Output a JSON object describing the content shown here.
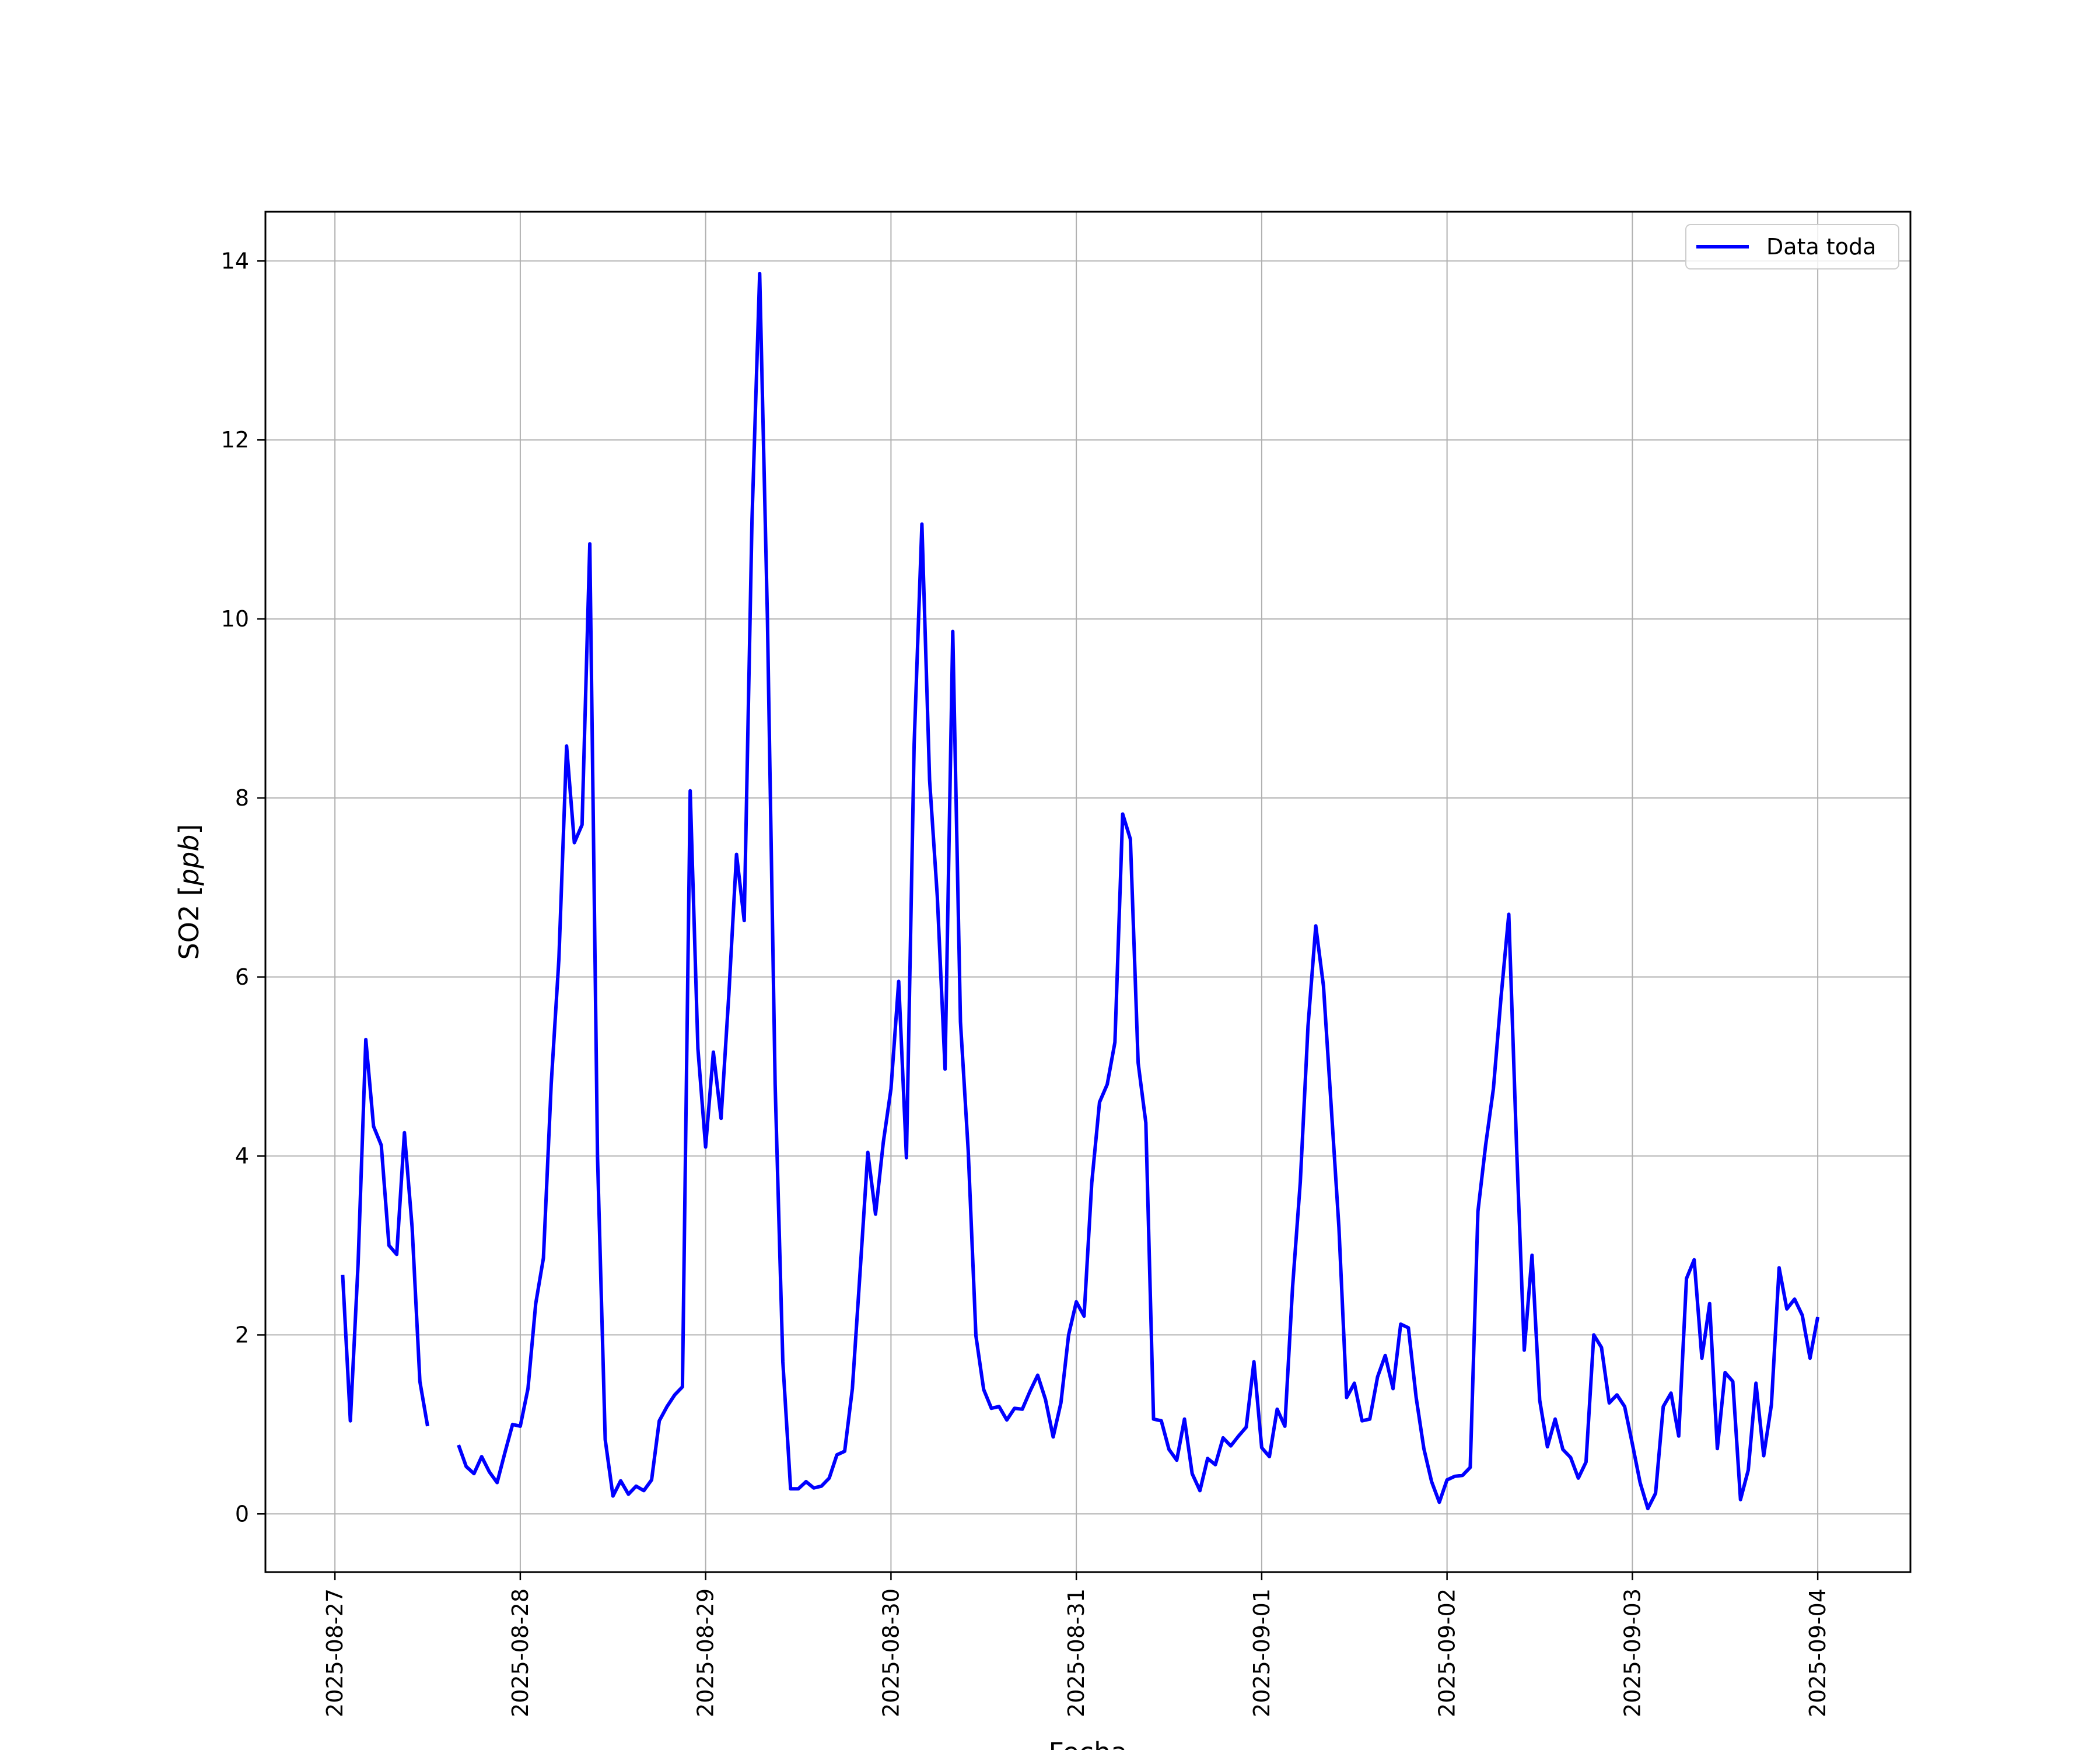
{
  "chart_data": {
    "type": "line",
    "xlabel": "Fecha",
    "ylabel_main": "SO2 [",
    "ylabel_unit": "ppb",
    "ylabel_close": "]",
    "xlim": [
      "2025-08-26T15:00",
      "2025-09-04T12:00"
    ],
    "ylim": [
      -0.65,
      14.55
    ],
    "x_ticks": [
      "2025-08-27",
      "2025-08-28",
      "2025-08-29",
      "2025-08-30",
      "2025-08-31",
      "2025-09-01",
      "2025-09-02",
      "2025-09-03",
      "2025-09-04"
    ],
    "y_ticks": [
      0,
      2,
      4,
      6,
      8,
      10,
      12,
      14
    ],
    "y_tick_labels": [
      "0",
      "2",
      "4",
      "6",
      "8",
      "10",
      "12",
      "14"
    ],
    "grid": true,
    "legend_position": "top-right",
    "series": [
      {
        "name": "Data toda",
        "color": "#0000ff",
        "start": "2025-08-27T01:00",
        "step_hours": 1,
        "values": [
          2.67,
          1.04,
          2.8,
          5.3,
          4.33,
          4.12,
          3.0,
          2.9,
          4.26,
          3.2,
          1.48,
          0.98,
          null,
          null,
          null,
          0.77,
          0.53,
          0.45,
          0.64,
          0.47,
          0.35,
          0.68,
          1.0,
          0.98,
          1.4,
          2.35,
          2.86,
          4.8,
          6.2,
          8.58,
          7.5,
          7.7,
          10.84,
          4.0,
          0.83,
          0.2,
          0.37,
          0.22,
          0.31,
          0.26,
          0.38,
          1.04,
          1.2,
          1.33,
          1.42,
          8.08,
          5.2,
          4.1,
          5.16,
          4.42,
          5.8,
          7.37,
          6.63,
          11.1,
          13.86,
          10.0,
          4.8,
          1.7,
          0.28,
          0.28,
          0.36,
          0.29,
          0.31,
          0.4,
          0.66,
          0.7,
          1.4,
          2.7,
          4.04,
          3.35,
          4.15,
          4.75,
          5.95,
          3.98,
          8.6,
          11.06,
          8.2,
          6.9,
          4.97,
          9.86,
          5.5,
          4.06,
          1.99,
          1.39,
          1.18,
          1.2,
          1.05,
          1.18,
          1.17,
          1.37,
          1.55,
          1.28,
          0.86,
          1.24,
          2.0,
          2.37,
          2.21,
          3.7,
          4.6,
          4.8,
          5.27,
          7.82,
          7.54,
          5.04,
          4.37,
          1.06,
          1.04,
          0.72,
          0.6,
          1.06,
          0.45,
          0.26,
          0.62,
          0.55,
          0.85,
          0.76,
          0.87,
          0.97,
          1.7,
          0.74,
          0.64,
          1.17,
          0.98,
          2.53,
          3.71,
          5.45,
          6.57,
          5.9,
          4.56,
          3.2,
          1.3,
          1.46,
          1.04,
          1.06,
          1.53,
          1.77,
          1.4,
          2.12,
          2.08,
          1.3,
          0.73,
          0.36,
          0.13,
          0.38,
          0.42,
          0.43,
          0.52,
          3.38,
          4.12,
          4.75,
          5.78,
          6.7,
          4.11,
          1.83,
          2.89,
          1.27,
          0.75,
          1.06,
          0.72,
          0.63,
          0.4,
          0.58,
          2.0,
          1.86,
          1.24,
          1.33,
          1.2,
          0.78,
          0.35,
          0.06,
          0.23,
          1.2,
          1.35,
          0.87,
          2.63,
          2.84,
          1.74,
          2.35,
          0.73,
          1.58,
          1.48,
          0.16,
          0.49,
          1.46,
          0.65,
          1.22,
          2.75,
          2.29,
          2.4,
          2.22,
          1.74,
          2.2
        ]
      }
    ]
  }
}
